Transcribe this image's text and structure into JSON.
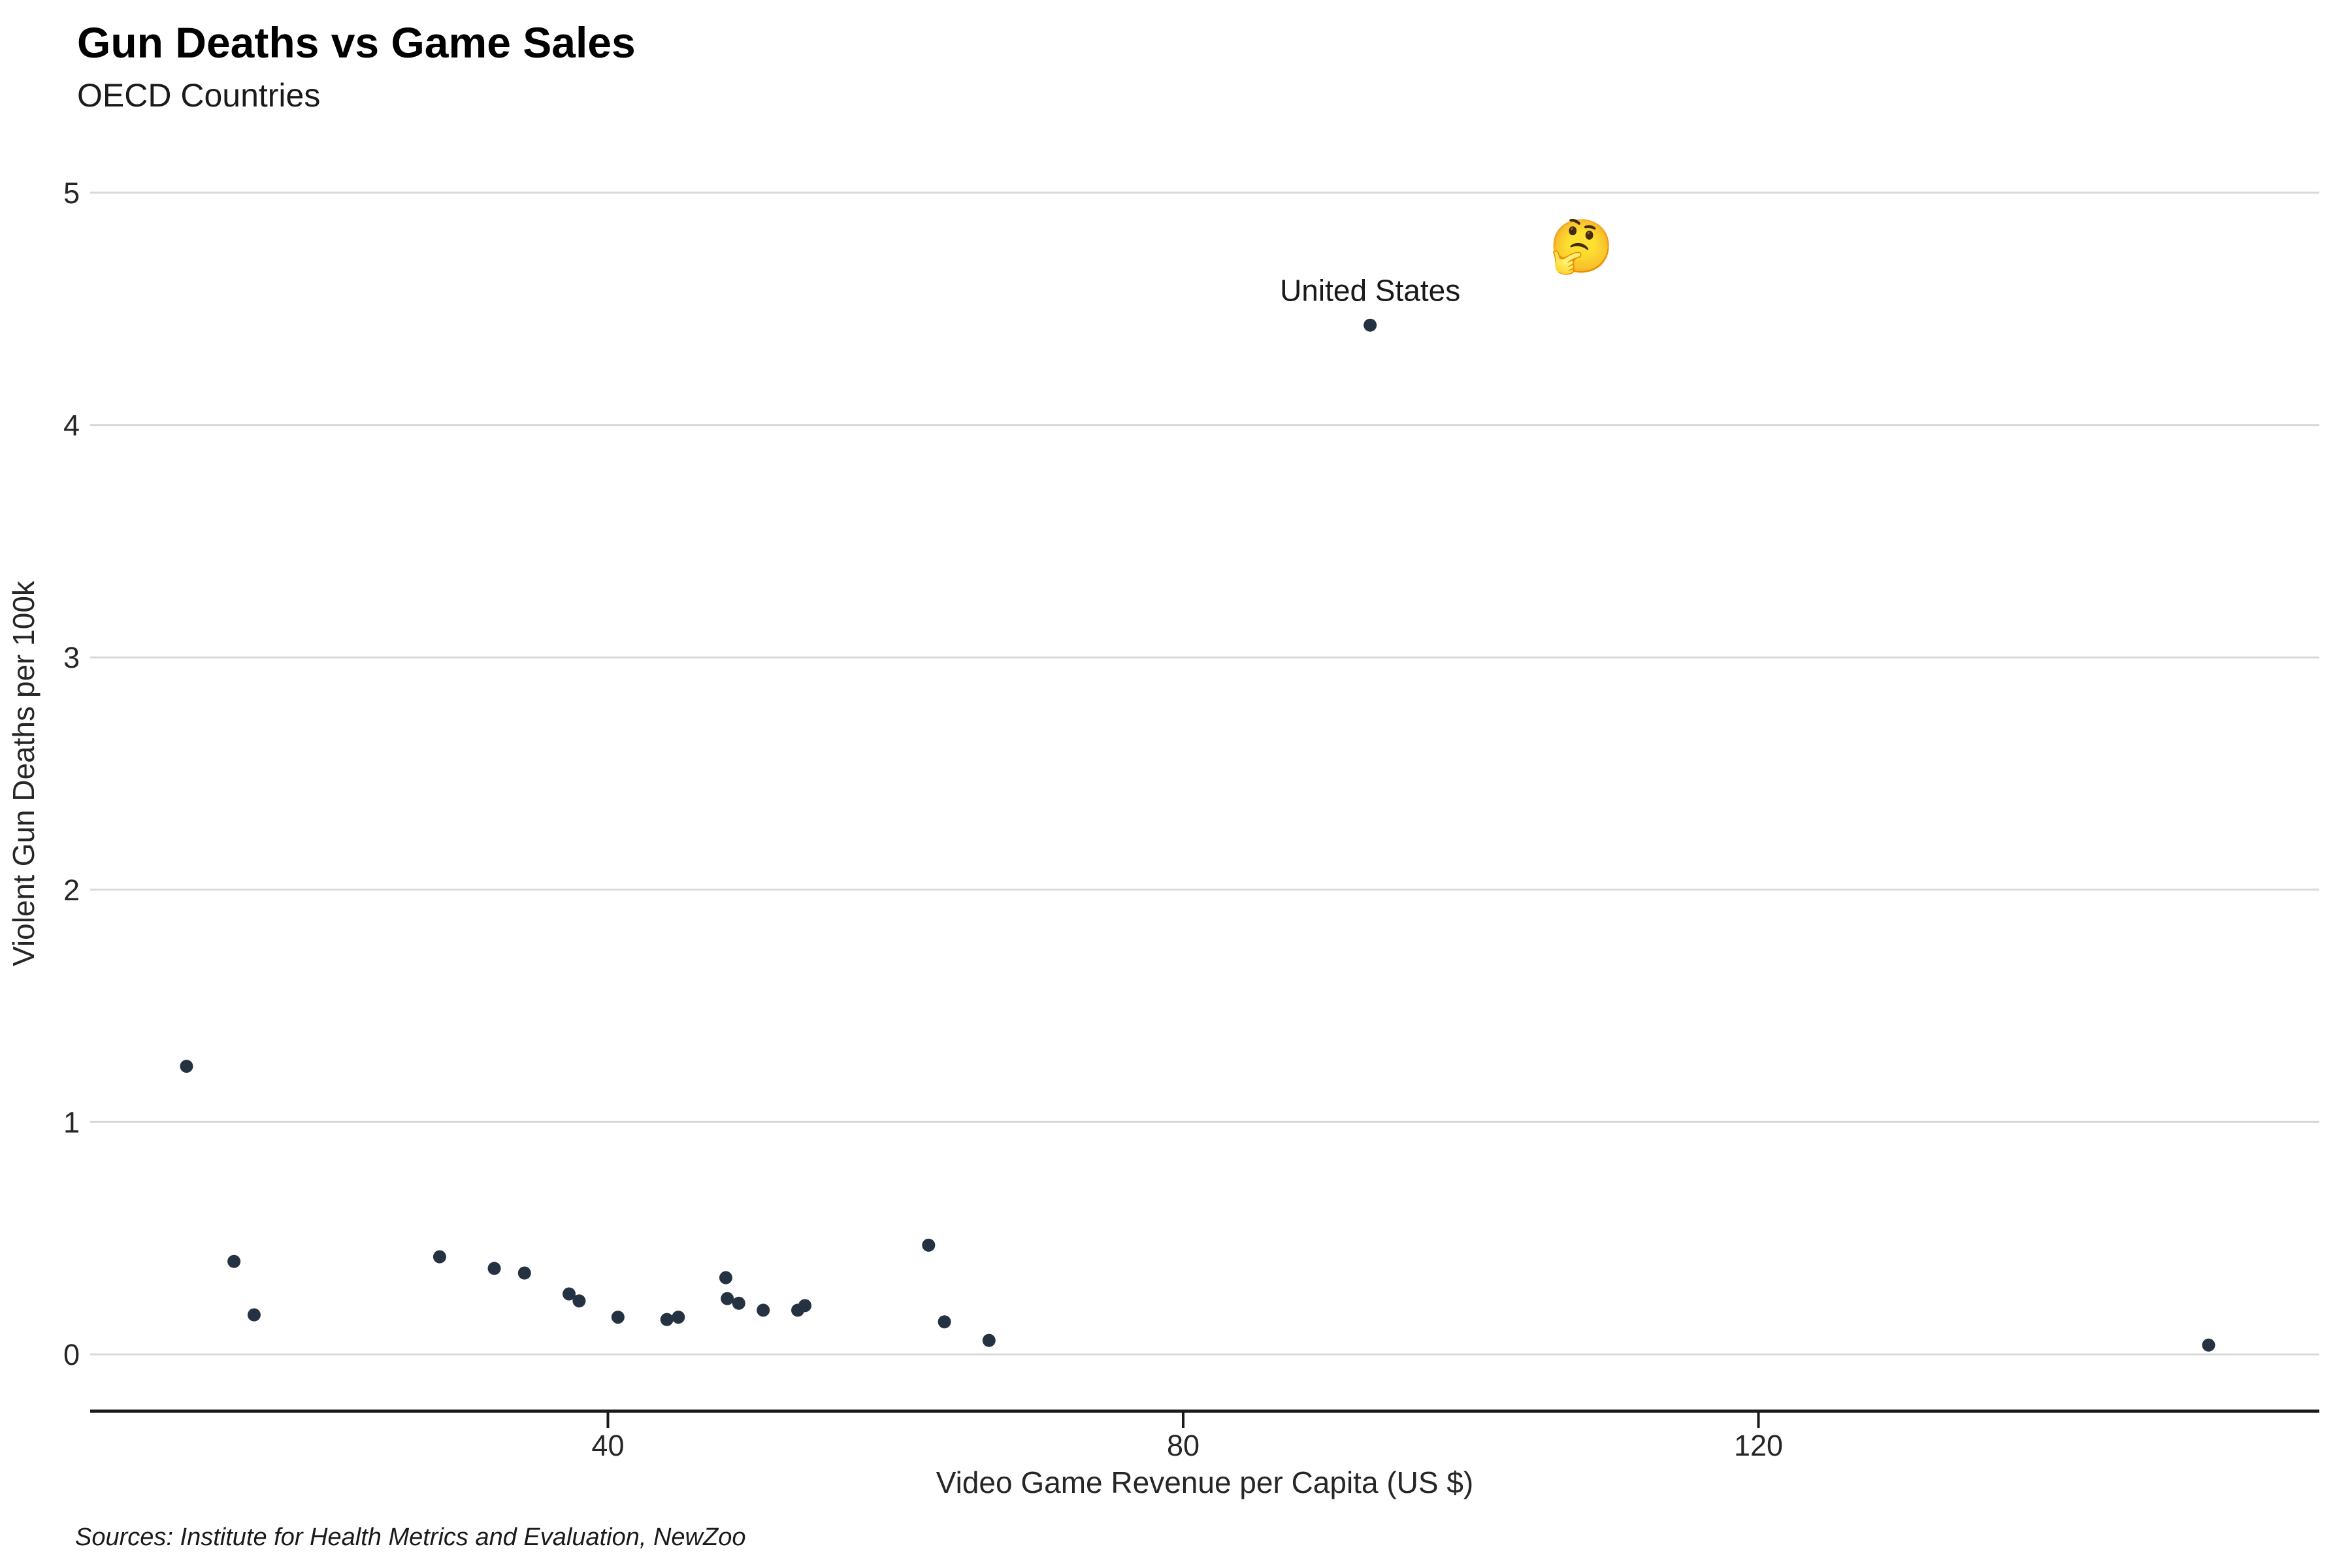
{
  "header": {
    "title": "Gun Deaths vs Game Sales",
    "subtitle": "OECD Countries"
  },
  "caption": "Sources: Institute for Health Metrics and Evaluation, NewZoo",
  "colors": {
    "point": "#253242",
    "gridline": "#d9d9d9",
    "axis_line": "#1a1a1a",
    "tick_text": "#262626",
    "title_text": "#000000"
  },
  "chart_data": {
    "type": "scatter",
    "title": "Gun Deaths vs Game Sales",
    "subtitle": "OECD Countries",
    "xlabel": "Video Game Revenue per Capita (US $)",
    "ylabel": "Violent Gun Deaths per 100k",
    "x_ticks": [
      40,
      80,
      120
    ],
    "y_ticks": [
      0,
      1,
      2,
      3,
      4,
      5
    ],
    "xlim": [
      4,
      159
    ],
    "ylim": [
      -0.25,
      5.2
    ],
    "grid": "horizontal-only",
    "legend": "none",
    "points": [
      [
        10.7,
        1.24
      ],
      [
        14.0,
        0.4
      ],
      [
        15.4,
        0.17
      ],
      [
        28.3,
        0.42
      ],
      [
        32.1,
        0.37
      ],
      [
        34.2,
        0.35
      ],
      [
        37.3,
        0.26
      ],
      [
        38.0,
        0.23
      ],
      [
        40.7,
        0.16
      ],
      [
        44.1,
        0.15
      ],
      [
        44.9,
        0.16
      ],
      [
        48.2,
        0.33
      ],
      [
        48.3,
        0.24
      ],
      [
        49.1,
        0.22
      ],
      [
        50.8,
        0.19
      ],
      [
        53.2,
        0.19
      ],
      [
        53.7,
        0.21
      ],
      [
        62.3,
        0.47
      ],
      [
        63.4,
        0.14
      ],
      [
        66.5,
        0.06
      ],
      [
        93.0,
        4.43
      ],
      [
        151.3,
        0.04
      ]
    ],
    "labeled_point": {
      "label": "United States",
      "x": 93.0,
      "y": 4.43
    },
    "annotations": [
      {
        "kind": "text",
        "text": "United States",
        "x": 93.0,
        "y": 4.58
      },
      {
        "kind": "emoji",
        "text": "🤔",
        "x": 107.7,
        "y": 4.77
      }
    ]
  }
}
